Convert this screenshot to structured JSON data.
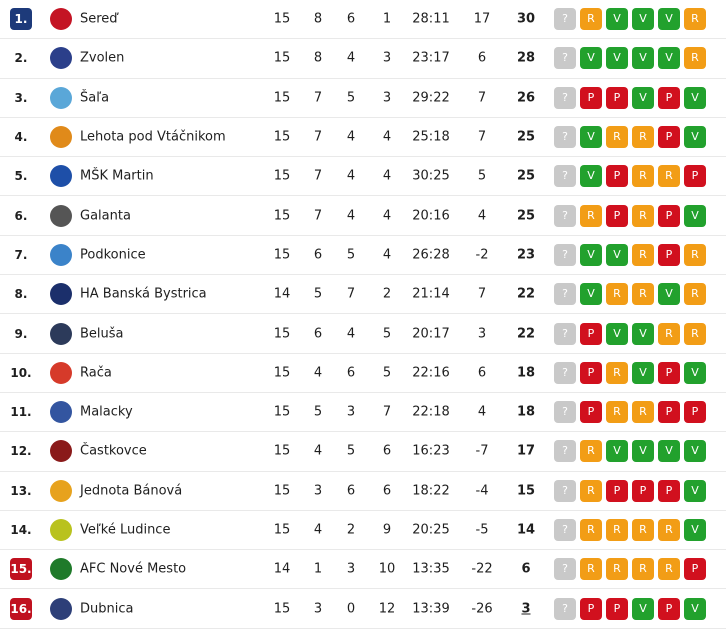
{
  "colors": {
    "leader_rank_bg": "#1d3a7a",
    "relegation_rank_bg": "#c0111f",
    "form_unknown": "#c9c9c9",
    "form_R": "#f29d16",
    "form_V": "#22a12d",
    "form_P": "#d1101e"
  },
  "table": [
    {
      "rank": "1.",
      "team": "Sereď",
      "p": "15",
      "w": "8",
      "d": "6",
      "l": "1",
      "score": "28:11",
      "diff": "17",
      "pts": "30",
      "form": [
        "?",
        "R",
        "V",
        "V",
        "V",
        "R"
      ],
      "rank_style": "leader",
      "logo": "#c41424"
    },
    {
      "rank": "2.",
      "team": "Zvolen",
      "p": "15",
      "w": "8",
      "d": "4",
      "l": "3",
      "score": "23:17",
      "diff": "6",
      "pts": "28",
      "form": [
        "?",
        "V",
        "V",
        "V",
        "V",
        "R"
      ],
      "rank_style": "plain",
      "logo": "#2b3f8a"
    },
    {
      "rank": "3.",
      "team": "Šaľa",
      "p": "15",
      "w": "7",
      "d": "5",
      "l": "3",
      "score": "29:22",
      "diff": "7",
      "pts": "26",
      "form": [
        "?",
        "P",
        "P",
        "V",
        "P",
        "V"
      ],
      "rank_style": "plain",
      "logo": "#5aa7d8"
    },
    {
      "rank": "4.",
      "team": "Lehota pod Vtáčnikom",
      "p": "15",
      "w": "7",
      "d": "4",
      "l": "4",
      "score": "25:18",
      "diff": "7",
      "pts": "25",
      "form": [
        "?",
        "V",
        "R",
        "R",
        "P",
        "V"
      ],
      "rank_style": "plain",
      "logo": "#e08a1a"
    },
    {
      "rank": "5.",
      "team": "MŠK Martin",
      "p": "15",
      "w": "7",
      "d": "4",
      "l": "4",
      "score": "30:25",
      "diff": "5",
      "pts": "25",
      "form": [
        "?",
        "V",
        "P",
        "R",
        "R",
        "P"
      ],
      "rank_style": "plain",
      "logo": "#1e4fa8"
    },
    {
      "rank": "6.",
      "team": "Galanta",
      "p": "15",
      "w": "7",
      "d": "4",
      "l": "4",
      "score": "20:16",
      "diff": "4",
      "pts": "25",
      "form": [
        "?",
        "R",
        "P",
        "R",
        "P",
        "V"
      ],
      "rank_style": "plain",
      "logo": "#555555"
    },
    {
      "rank": "7.",
      "team": "Podkonice",
      "p": "15",
      "w": "6",
      "d": "5",
      "l": "4",
      "score": "26:28",
      "diff": "-2",
      "pts": "23",
      "form": [
        "?",
        "V",
        "V",
        "R",
        "P",
        "R"
      ],
      "rank_style": "plain",
      "logo": "#3b83c9"
    },
    {
      "rank": "8.",
      "team": "HA Banská Bystrica",
      "p": "14",
      "w": "5",
      "d": "7",
      "l": "2",
      "score": "21:14",
      "diff": "7",
      "pts": "22",
      "form": [
        "?",
        "V",
        "R",
        "R",
        "V",
        "R"
      ],
      "rank_style": "plain",
      "logo": "#1b2f6b"
    },
    {
      "rank": "9.",
      "team": "Beluša",
      "p": "15",
      "w": "6",
      "d": "4",
      "l": "5",
      "score": "20:17",
      "diff": "3",
      "pts": "22",
      "form": [
        "?",
        "P",
        "V",
        "V",
        "R",
        "R"
      ],
      "rank_style": "plain",
      "logo": "#2c3a5a"
    },
    {
      "rank": "10.",
      "team": "Rača",
      "p": "15",
      "w": "4",
      "d": "6",
      "l": "5",
      "score": "22:16",
      "diff": "6",
      "pts": "18",
      "form": [
        "?",
        "P",
        "R",
        "V",
        "P",
        "V"
      ],
      "rank_style": "plain",
      "logo": "#d63a2a"
    },
    {
      "rank": "11.",
      "team": "Malacky",
      "p": "15",
      "w": "5",
      "d": "3",
      "l": "7",
      "score": "22:18",
      "diff": "4",
      "pts": "18",
      "form": [
        "?",
        "P",
        "R",
        "R",
        "P",
        "P"
      ],
      "rank_style": "plain",
      "logo": "#3355a0"
    },
    {
      "rank": "12.",
      "team": "Častkovce",
      "p": "15",
      "w": "4",
      "d": "5",
      "l": "6",
      "score": "16:23",
      "diff": "-7",
      "pts": "17",
      "form": [
        "?",
        "R",
        "V",
        "V",
        "V",
        "V"
      ],
      "rank_style": "plain",
      "logo": "#8a1a1a"
    },
    {
      "rank": "13.",
      "team": "Jednota Bánová",
      "p": "15",
      "w": "3",
      "d": "6",
      "l": "6",
      "score": "18:22",
      "diff": "-4",
      "pts": "15",
      "form": [
        "?",
        "R",
        "P",
        "P",
        "P",
        "V"
      ],
      "rank_style": "plain",
      "logo": "#e7a21d"
    },
    {
      "rank": "14.",
      "team": "Veľké Ludince",
      "p": "15",
      "w": "4",
      "d": "2",
      "l": "9",
      "score": "20:25",
      "diff": "-5",
      "pts": "14",
      "form": [
        "?",
        "R",
        "R",
        "R",
        "R",
        "V"
      ],
      "rank_style": "plain",
      "logo": "#b9c21e"
    },
    {
      "rank": "15.",
      "team": "AFC Nové Mesto",
      "p": "14",
      "w": "1",
      "d": "3",
      "l": "10",
      "score": "13:35",
      "diff": "-22",
      "pts": "6",
      "form": [
        "?",
        "R",
        "R",
        "R",
        "R",
        "P"
      ],
      "rank_style": "relegation",
      "logo": "#1f7a2a"
    },
    {
      "rank": "16.",
      "team": "Dubnica",
      "p": "15",
      "w": "3",
      "d": "0",
      "l": "12",
      "score": "13:39",
      "diff": "-26",
      "pts": "3",
      "form": [
        "?",
        "P",
        "P",
        "V",
        "P",
        "V"
      ],
      "rank_style": "relegation",
      "logo": "#2d3f78",
      "pts_underline": true
    }
  ]
}
